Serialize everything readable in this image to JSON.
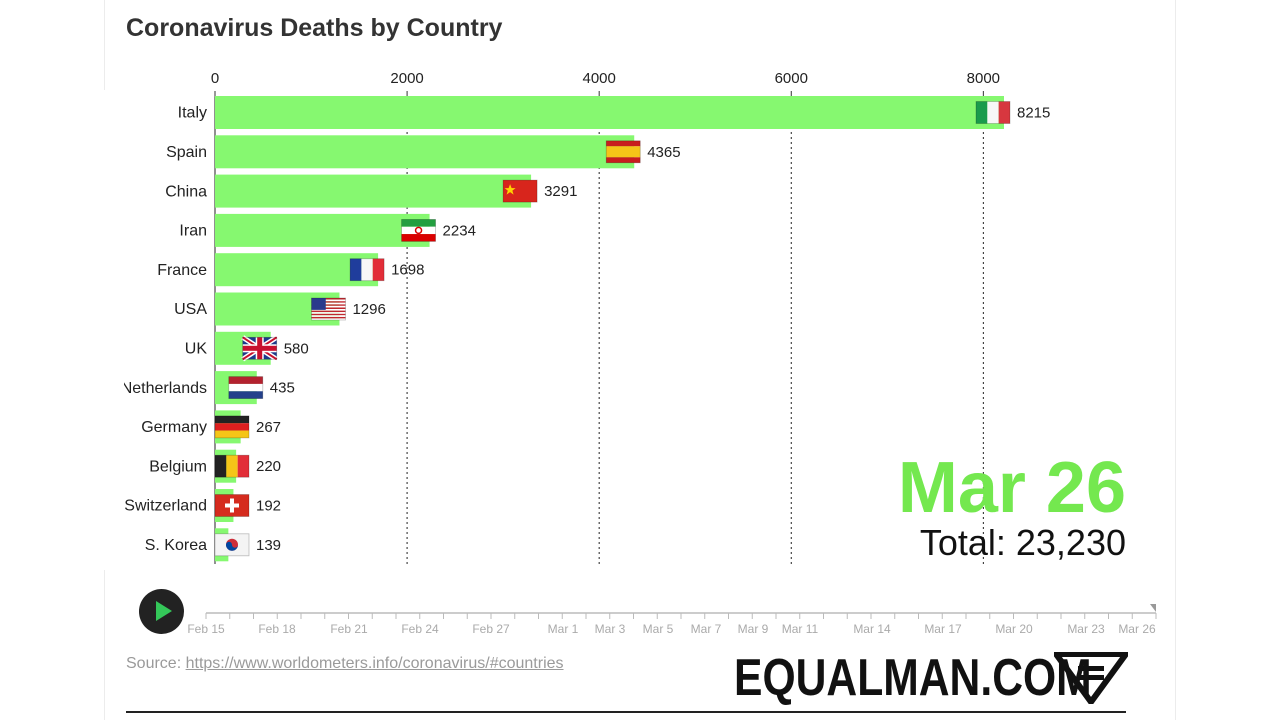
{
  "chart_data": {
    "type": "bar",
    "title": "Coronavirus Deaths by Country",
    "xlim": [
      0,
      8215
    ],
    "x_ticks": [
      "0",
      "2000",
      "4000",
      "6000",
      "8000"
    ],
    "categories": [
      "Italy",
      "Spain",
      "China",
      "Iran",
      "France",
      "USA",
      "UK",
      "Netherlands",
      "Germany",
      "Belgium",
      "Switzerland",
      "S. Korea"
    ],
    "values": [
      8215,
      4365,
      3291,
      2234,
      1698,
      1296,
      580,
      435,
      267,
      220,
      192,
      139
    ],
    "value_labels": [
      "8215",
      "4365",
      "3291",
      "2234",
      "1698",
      "1296",
      "580",
      "435",
      "267",
      "220",
      "192",
      "139"
    ],
    "bar_color": "#86f870",
    "grid": "vertical dotted",
    "current_date": "Mar 26",
    "total": "Total: 23,230"
  },
  "timeline": {
    "labels": [
      "Feb 15",
      "Feb 18",
      "Feb 21",
      "Feb 24",
      "Feb 27",
      "Mar 1",
      "Mar 3",
      "Mar 5",
      "Mar 7",
      "Mar 9",
      "Mar 11",
      "Mar 14",
      "Mar 17",
      "Mar 20",
      "Mar 23",
      "Mar 26"
    ],
    "progress": 1.0
  },
  "source": {
    "prefix": "Source: ",
    "link": "https://www.worldometers.info/coronavirus/#countries"
  },
  "brand": {
    "text": "EQUALMAN.COM"
  },
  "colors": {
    "accent": "#74e84f",
    "bar": "#86f870"
  }
}
